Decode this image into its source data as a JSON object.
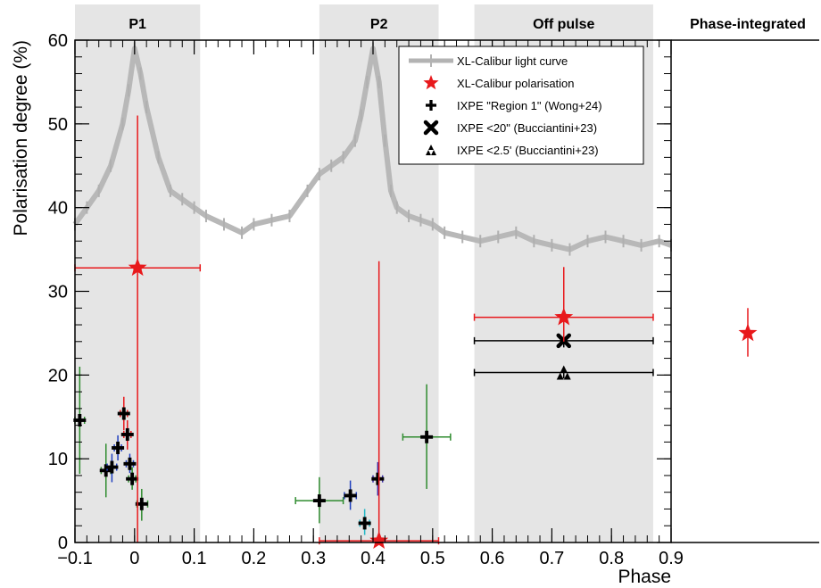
{
  "chart_data": {
    "type": "scatter",
    "title": "",
    "xlabel": "Phase",
    "ylabel": "Polarisation degree (%)",
    "xlim": [
      -0.1,
      0.9
    ],
    "ylim": [
      0,
      60
    ],
    "x_ticks": [
      "−0.1",
      "0",
      "0.1",
      "0.2",
      "0.3",
      "0.4",
      "0.5",
      "0.6",
      "0.7",
      "0.8",
      "0.9"
    ],
    "y_ticks": [
      "0",
      "10",
      "20",
      "30",
      "40",
      "50",
      "60"
    ],
    "regions": [
      {
        "label": "P1",
        "x0": -0.1,
        "x1": 0.11
      },
      {
        "label": "P2",
        "x0": 0.31,
        "x1": 0.51
      },
      {
        "label": "Off pulse",
        "x0": 0.57,
        "x1": 0.87
      }
    ],
    "side_panel": {
      "label": "Phase-integrated",
      "value": 25.0,
      "err_low": 2.8,
      "err_high": 3.0
    },
    "legend": [
      {
        "key": "light_curve",
        "label": "XL-Calibur light curve",
        "marker": "line",
        "color": "#b3b3b3"
      },
      {
        "key": "xl_pol",
        "label": "XL-Calibur polarisation",
        "marker": "star",
        "color": "#e8191c"
      },
      {
        "key": "region1",
        "label": "IXPE \"Region 1\" (Wong+24)",
        "marker": "plus",
        "color": "#000000"
      },
      {
        "key": "b20",
        "label": "IXPE <20\" (Bucciantini+23)",
        "marker": "cross",
        "color": "#000000"
      },
      {
        "key": "b25",
        "label": "IXPE <2.5' (Bucciantini+23)",
        "marker": "triangles",
        "color": "#000000"
      }
    ],
    "light_curve": {
      "x": [
        -0.1,
        -0.08,
        -0.06,
        -0.04,
        -0.02,
        -0.01,
        0.0,
        0.01,
        0.02,
        0.04,
        0.06,
        0.08,
        0.1,
        0.12,
        0.15,
        0.18,
        0.2,
        0.23,
        0.26,
        0.29,
        0.31,
        0.33,
        0.35,
        0.37,
        0.38,
        0.39,
        0.4,
        0.41,
        0.42,
        0.43,
        0.44,
        0.46,
        0.48,
        0.5,
        0.52,
        0.55,
        0.58,
        0.61,
        0.64,
        0.67,
        0.7,
        0.73,
        0.76,
        0.79,
        0.82,
        0.85,
        0.88,
        0.9
      ],
      "y": [
        38,
        40,
        42,
        45,
        50,
        54,
        59,
        56,
        52,
        46,
        42,
        41,
        40,
        39,
        38,
        37,
        38,
        38.5,
        39,
        42,
        44,
        45,
        46,
        48,
        51,
        55,
        59,
        55,
        48,
        42,
        40,
        39,
        38.5,
        38,
        37,
        36.5,
        36,
        36.5,
        37,
        36,
        35.5,
        35,
        36,
        36.5,
        36,
        35.5,
        36,
        35.5
      ]
    },
    "series": [
      {
        "name": "XL-Calibur polarisation",
        "marker": "star",
        "color": "#e8191c",
        "points": [
          {
            "x": 0.005,
            "y": 32.8,
            "xlo": -0.1,
            "xhi": 0.11,
            "ylo": 0,
            "yhi": 51.0
          },
          {
            "x": 0.41,
            "y": 0.2,
            "xlo": 0.31,
            "xhi": 0.51,
            "ylo": 0,
            "yhi": 33.6
          },
          {
            "x": 0.72,
            "y": 26.9,
            "xlo": 0.57,
            "xhi": 0.87,
            "ylo": 24.0,
            "yhi": 32.9
          }
        ]
      },
      {
        "name": "IXPE \"Region 1\" (Wong+24)",
        "marker": "plus",
        "color": "#000000",
        "points": [
          {
            "x": -0.092,
            "y": 14.6,
            "xlo": -0.1,
            "xhi": -0.084,
            "ylo": 8.2,
            "yhi": 21.0,
            "ecolor": "#2e8b2e"
          },
          {
            "x": -0.048,
            "y": 8.6,
            "xlo": -0.056,
            "xhi": -0.04,
            "ylo": 5.4,
            "yhi": 11.8,
            "ecolor": "#2e8b2e"
          },
          {
            "x": -0.038,
            "y": 9.0,
            "xlo": -0.046,
            "xhi": -0.03,
            "ylo": 7.2,
            "yhi": 10.6,
            "ecolor": "#1f3fbf"
          },
          {
            "x": -0.028,
            "y": 11.3,
            "xlo": -0.034,
            "xhi": -0.022,
            "ylo": 9.8,
            "yhi": 12.8,
            "ecolor": "#1f3fbf"
          },
          {
            "x": -0.018,
            "y": 15.4,
            "xlo": -0.024,
            "xhi": -0.012,
            "ylo": 13.4,
            "yhi": 17.4,
            "ecolor": "#e8191c"
          },
          {
            "x": -0.012,
            "y": 12.9,
            "xlo": -0.018,
            "xhi": -0.006,
            "ylo": 11.1,
            "yhi": 14.6,
            "ecolor": "#e8191c"
          },
          {
            "x": -0.008,
            "y": 9.4,
            "xlo": -0.014,
            "xhi": -0.002,
            "ylo": 8.3,
            "yhi": 10.6,
            "ecolor": "#1f3fbf"
          },
          {
            "x": -0.004,
            "y": 7.6,
            "xlo": -0.01,
            "xhi": 0.002,
            "ylo": 6.3,
            "yhi": 9.0,
            "ecolor": "#2e8b2e"
          },
          {
            "x": 0.012,
            "y": 4.6,
            "xlo": 0.004,
            "xhi": 0.022,
            "ylo": 2.6,
            "yhi": 6.4,
            "ecolor": "#2e8b2e"
          },
          {
            "x": 0.31,
            "y": 5.0,
            "xlo": 0.27,
            "xhi": 0.35,
            "ylo": 2.3,
            "yhi": 7.8,
            "ecolor": "#2e8b2e"
          },
          {
            "x": 0.362,
            "y": 5.6,
            "xlo": 0.352,
            "xhi": 0.372,
            "ylo": 3.9,
            "yhi": 7.4,
            "ecolor": "#1f3fbf"
          },
          {
            "x": 0.386,
            "y": 2.3,
            "xlo": 0.378,
            "xhi": 0.394,
            "ylo": 0.9,
            "yhi": 4.0,
            "ecolor": "#23b8c6"
          },
          {
            "x": 0.408,
            "y": 7.6,
            "xlo": 0.4,
            "xhi": 0.416,
            "ylo": 5.6,
            "yhi": 9.6,
            "ecolor": "#3a2ba8"
          },
          {
            "x": 0.49,
            "y": 12.6,
            "xlo": 0.45,
            "xhi": 0.53,
            "ylo": 6.4,
            "yhi": 18.9,
            "ecolor": "#2e8b2e"
          }
        ]
      },
      {
        "name": "IXPE <20\" (Bucciantini+23)",
        "marker": "cross",
        "color": "#000000",
        "points": [
          {
            "x": 0.72,
            "y": 24.1,
            "xlo": 0.57,
            "xhi": 0.87,
            "ylo": 23.3,
            "yhi": 24.9
          }
        ]
      },
      {
        "name": "IXPE <2.5' (Bucciantini+23)",
        "marker": "triangles",
        "color": "#000000",
        "points": [
          {
            "x": 0.72,
            "y": 20.3,
            "xlo": 0.57,
            "xhi": 0.87,
            "ylo": 19.6,
            "yhi": 21.0
          }
        ]
      }
    ]
  }
}
